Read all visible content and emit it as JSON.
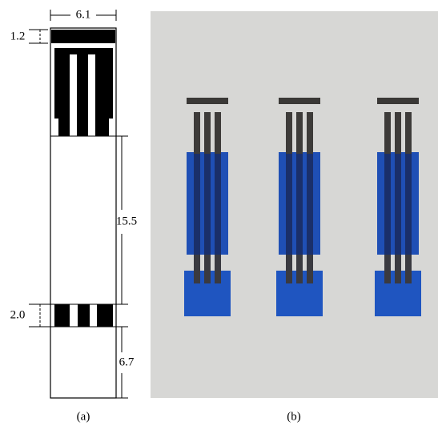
{
  "panel_a": {
    "label": "(a)",
    "dimensions": {
      "width": "6.1",
      "top_bar": "1.2",
      "middle": "15.5",
      "bottom_pad": "2.0",
      "bottom": "6.7"
    }
  },
  "panel_b": {
    "label": "(b)"
  }
}
